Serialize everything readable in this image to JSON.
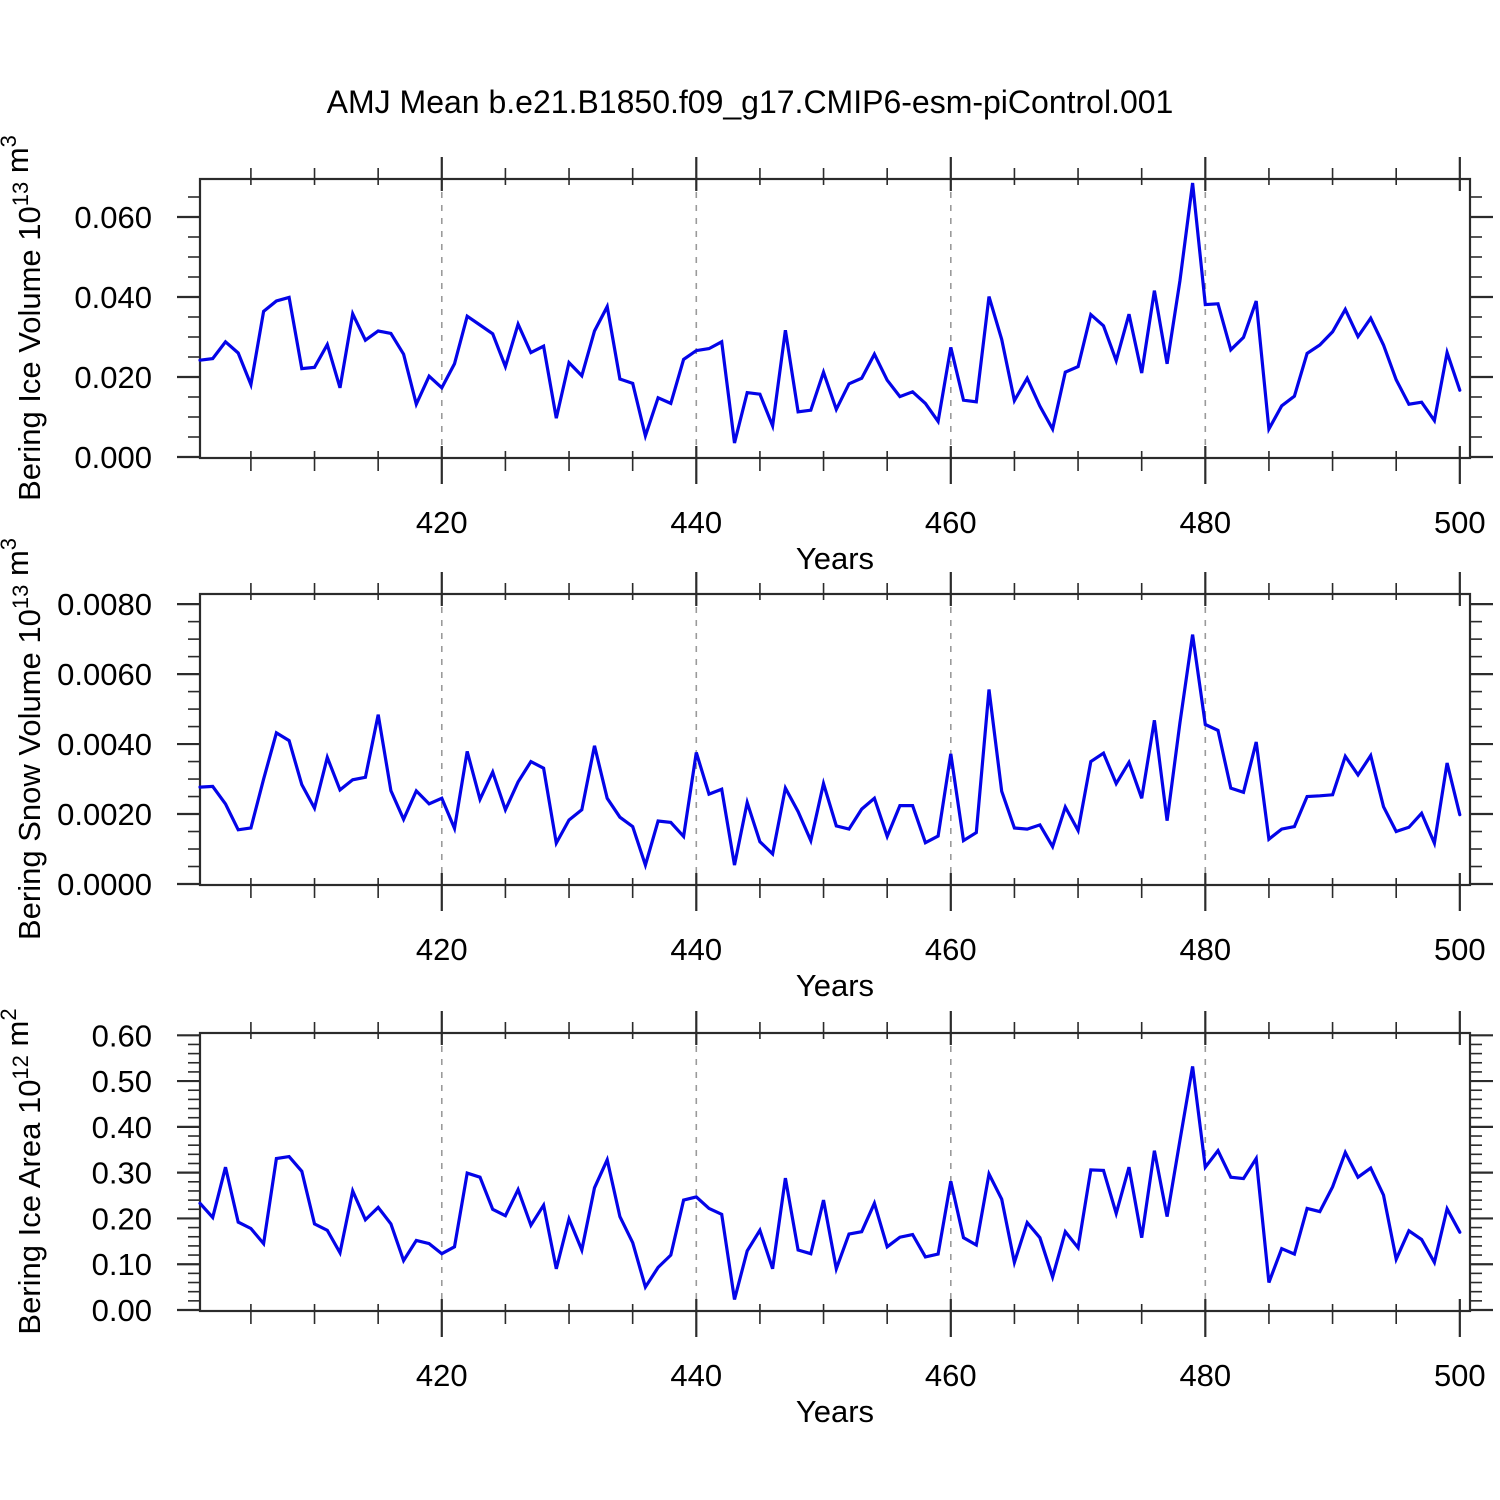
{
  "title": "AMJ Mean b.e21.B1850.f09_g17.CMIP6-esm-piControl.001",
  "line_color": "#0404e8",
  "axis_color": "#2b2b2b",
  "grid_color": "#9a9a9a",
  "chart_data": [
    {
      "id": "bering-ice-volume",
      "type": "line",
      "xlabel": "Years",
      "ylabel_parts": [
        {
          "t": "Bering Ice Volume 10"
        },
        {
          "t": "13",
          "sup": true
        },
        {
          "t": " m"
        },
        {
          "t": "3",
          "sup": true
        }
      ],
      "xlim": [
        401,
        500.8
      ],
      "ylim": [
        0,
        0.0695
      ],
      "y_major_step": 0.02,
      "y_minor_step": 0.005,
      "y_tick_labels": [
        "0.000",
        "0.020",
        "0.040",
        "0.060"
      ],
      "x_major_ticks": [
        420,
        440,
        460,
        480,
        500
      ],
      "x_minor_step": 5,
      "gridline_years": [
        420,
        440,
        460,
        480
      ],
      "x_start": 401,
      "values": [
        0.0242,
        0.0246,
        0.0288,
        0.026,
        0.0181,
        0.0364,
        0.039,
        0.0399,
        0.0221,
        0.0224,
        0.0281,
        0.0173,
        0.0358,
        0.0292,
        0.0315,
        0.0309,
        0.0257,
        0.0132,
        0.0202,
        0.0173,
        0.0233,
        0.0352,
        0.033,
        0.0308,
        0.0226,
        0.0332,
        0.0261,
        0.0277,
        0.0097,
        0.0236,
        0.0203,
        0.0315,
        0.0376,
        0.0195,
        0.0184,
        0.0053,
        0.0148,
        0.0134,
        0.0244,
        0.0266,
        0.0271,
        0.0288,
        0.0035,
        0.0161,
        0.0157,
        0.0078,
        0.0317,
        0.0113,
        0.0117,
        0.0212,
        0.0119,
        0.0183,
        0.0197,
        0.0257,
        0.0192,
        0.0151,
        0.0163,
        0.0134,
        0.0089,
        0.0274,
        0.0142,
        0.0138,
        0.0401,
        0.0294,
        0.0141,
        0.0197,
        0.0127,
        0.007,
        0.0212,
        0.0226,
        0.0356,
        0.0328,
        0.0241,
        0.0357,
        0.021,
        0.0416,
        0.0233,
        0.044,
        0.0685,
        0.0381,
        0.0383,
        0.0268,
        0.0299,
        0.039,
        0.007,
        0.0128,
        0.0152,
        0.0259,
        0.028,
        0.0313,
        0.0369,
        0.0301,
        0.0347,
        0.028,
        0.0193,
        0.0132,
        0.0137,
        0.0091,
        0.0261,
        0.0167
      ]
    },
    {
      "id": "bering-snow-volume",
      "type": "line",
      "xlabel": "Years",
      "ylabel_parts": [
        {
          "t": "Bering Snow Volume 10"
        },
        {
          "t": "13",
          "sup": true
        },
        {
          "t": " m"
        },
        {
          "t": "3",
          "sup": true
        }
      ],
      "xlim": [
        401,
        500.8
      ],
      "ylim": [
        0,
        0.00829
      ],
      "y_major_step": 0.002,
      "y_minor_step": 0.0005,
      "y_tick_labels": [
        "0.0000",
        "0.0020",
        "0.0040",
        "0.0060",
        "0.0080"
      ],
      "x_major_ticks": [
        420,
        440,
        460,
        480,
        500
      ],
      "x_minor_step": 5,
      "gridline_years": [
        420,
        440,
        460,
        480
      ],
      "x_start": 401,
      "values": [
        0.00277,
        0.00279,
        0.00229,
        0.00155,
        0.0016,
        0.003,
        0.00432,
        0.0041,
        0.00284,
        0.00217,
        0.00362,
        0.00269,
        0.00298,
        0.00305,
        0.00484,
        0.00267,
        0.00185,
        0.00266,
        0.00229,
        0.00245,
        0.00159,
        0.00379,
        0.00242,
        0.0032,
        0.00212,
        0.00292,
        0.0035,
        0.00331,
        0.00117,
        0.00183,
        0.00212,
        0.00395,
        0.00245,
        0.00191,
        0.00164,
        0.00054,
        0.0018,
        0.00176,
        0.00136,
        0.00376,
        0.00257,
        0.00271,
        0.00054,
        0.00233,
        0.00121,
        0.00086,
        0.00274,
        0.00207,
        0.00124,
        0.00287,
        0.00166,
        0.00157,
        0.00214,
        0.00245,
        0.00136,
        0.00224,
        0.00224,
        0.00118,
        0.00137,
        0.00372,
        0.00124,
        0.00147,
        0.00556,
        0.00265,
        0.0016,
        0.00157,
        0.00169,
        0.00107,
        0.0022,
        0.00153,
        0.0035,
        0.00374,
        0.00287,
        0.00348,
        0.00245,
        0.00468,
        0.00181,
        0.0046,
        0.00713,
        0.00456,
        0.00439,
        0.00274,
        0.00262,
        0.00406,
        0.00128,
        0.00157,
        0.00164,
        0.0025,
        0.00252,
        0.00255,
        0.00365,
        0.00312,
        0.00367,
        0.00221,
        0.0015,
        0.00162,
        0.00202,
        0.00117,
        0.00346,
        0.00198
      ]
    },
    {
      "id": "bering-ice-area",
      "type": "line",
      "xlabel": "Years",
      "ylabel_parts": [
        {
          "t": "Bering Ice Area 10"
        },
        {
          "t": "12",
          "sup": true
        },
        {
          "t": " m"
        },
        {
          "t": "2",
          "sup": true
        }
      ],
      "xlim": [
        401,
        500.8
      ],
      "ylim": [
        0,
        0.605
      ],
      "y_major_step": 0.1,
      "y_minor_step": 0.02,
      "y_tick_labels": [
        "0.00",
        "0.10",
        "0.20",
        "0.30",
        "0.40",
        "0.50",
        "0.60"
      ],
      "x_major_ticks": [
        420,
        440,
        460,
        480,
        500
      ],
      "x_minor_step": 5,
      "gridline_years": [
        420,
        440,
        460,
        480
      ],
      "x_start": 401,
      "values": [
        0.233,
        0.202,
        0.312,
        0.192,
        0.178,
        0.145,
        0.331,
        0.335,
        0.303,
        0.188,
        0.174,
        0.125,
        0.26,
        0.197,
        0.224,
        0.188,
        0.108,
        0.152,
        0.145,
        0.123,
        0.138,
        0.299,
        0.29,
        0.22,
        0.206,
        0.263,
        0.185,
        0.229,
        0.09,
        0.199,
        0.131,
        0.267,
        0.328,
        0.204,
        0.147,
        0.05,
        0.093,
        0.12,
        0.24,
        0.247,
        0.222,
        0.209,
        0.023,
        0.129,
        0.174,
        0.09,
        0.288,
        0.131,
        0.123,
        0.24,
        0.09,
        0.166,
        0.171,
        0.233,
        0.138,
        0.159,
        0.165,
        0.116,
        0.122,
        0.281,
        0.158,
        0.142,
        0.297,
        0.242,
        0.104,
        0.191,
        0.158,
        0.072,
        0.171,
        0.136,
        0.306,
        0.305,
        0.211,
        0.312,
        0.158,
        0.348,
        0.204,
        0.37,
        0.532,
        0.312,
        0.348,
        0.29,
        0.287,
        0.331,
        0.06,
        0.134,
        0.122,
        0.222,
        0.215,
        0.269,
        0.344,
        0.29,
        0.31,
        0.251,
        0.111,
        0.173,
        0.154,
        0.104,
        0.221,
        0.17
      ]
    }
  ]
}
